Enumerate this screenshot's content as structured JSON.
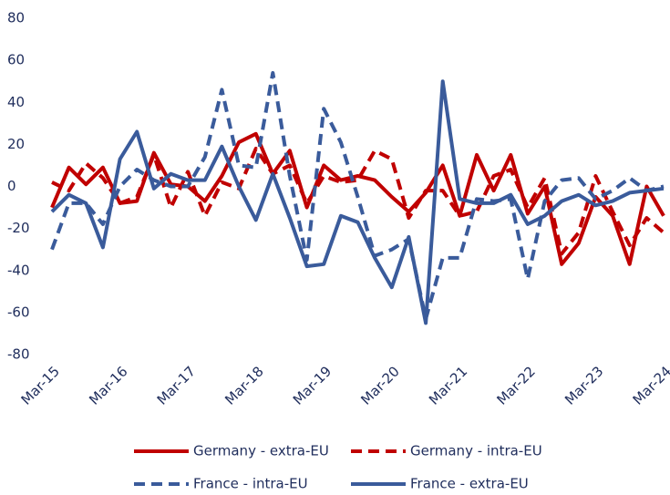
{
  "chart_data": {
    "type": "line",
    "categories": [
      "Mar-15",
      null,
      null,
      null,
      "Mar-16",
      null,
      null,
      null,
      "Mar-17",
      null,
      null,
      null,
      "Mar-18",
      null,
      null,
      null,
      "Mar-19",
      null,
      null,
      null,
      "Mar-20",
      null,
      null,
      null,
      "Mar-21",
      null,
      null,
      null,
      "Mar-22",
      null,
      null,
      null,
      "Mar-23",
      null,
      null,
      null,
      "Mar-24"
    ],
    "ylim": [
      -80,
      80
    ],
    "yticks": [
      -80,
      -60,
      -40,
      -20,
      0,
      20,
      40,
      60,
      80
    ],
    "series": [
      {
        "name": "Germany - extra-EU",
        "color": "#c00000",
        "dashed": false,
        "values": [
          -10,
          9,
          1,
          9,
          -8,
          -7,
          16,
          1,
          0,
          -7,
          5,
          21,
          25,
          6,
          17,
          -10,
          10,
          3,
          5,
          3,
          -5,
          -12,
          -3,
          10,
          -14,
          15,
          -2,
          15,
          -13,
          0,
          -37,
          -27,
          -5,
          -14,
          -37,
          0,
          -14
        ]
      },
      {
        "name": "Germany - intra-EU",
        "color": "#c00000",
        "dashed": true,
        "values": [
          2,
          -2,
          11,
          4,
          -8,
          -5,
          15,
          -10,
          7,
          -14,
          2,
          -1,
          18,
          6,
          10,
          -8,
          5,
          2,
          3,
          17,
          13,
          -15,
          -2,
          -2,
          -14,
          -12,
          5,
          8,
          -10,
          4,
          -32,
          -22,
          5,
          -12,
          -28,
          -15,
          -22
        ]
      },
      {
        "name": "France - intra-EU",
        "color": "#3a5b9b",
        "dashed": true,
        "values": [
          -30,
          -8,
          -8,
          -18,
          0,
          8,
          3,
          0,
          0,
          14,
          46,
          10,
          9,
          54,
          5,
          -35,
          37,
          21,
          -5,
          -33,
          -30,
          -25,
          -63,
          -34,
          -34,
          -6,
          -7,
          -6,
          -44,
          -7,
          3,
          4,
          -6,
          -2,
          4,
          -2,
          0
        ]
      },
      {
        "name": "France - extra-EU",
        "color": "#3a5b9b",
        "dashed": false,
        "values": [
          -12,
          -4,
          -8,
          -29,
          13,
          26,
          -1,
          6,
          3,
          3,
          19,
          0,
          -16,
          6,
          -15,
          -38,
          -37,
          -14,
          -17,
          -34,
          -48,
          -24,
          -65,
          50,
          -6,
          -8,
          -8,
          -4,
          -18,
          -14,
          -7,
          -4,
          -9,
          -7,
          -3,
          -2,
          -1
        ]
      }
    ]
  }
}
